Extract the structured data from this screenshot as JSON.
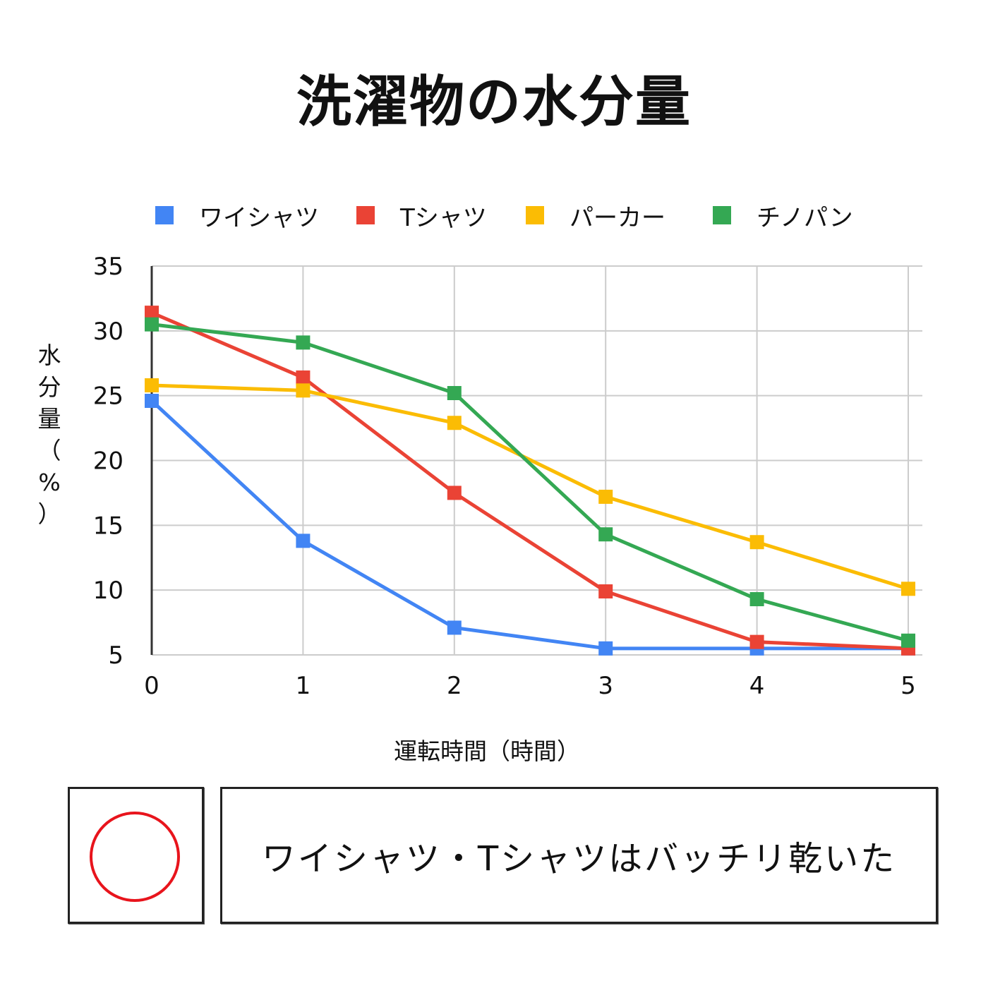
{
  "chart_data": {
    "type": "line",
    "title": "洗濯物の水分量",
    "xlabel": "運転時間（時間）",
    "ylabel": "水分量（%）",
    "x": [
      0,
      1,
      2,
      3,
      4,
      5
    ],
    "x_ticks": [
      "0",
      "1",
      "2",
      "3",
      "4",
      "5"
    ],
    "y_ticks": [
      "5",
      "10",
      "15",
      "20",
      "25",
      "30",
      "35"
    ],
    "ylim": [
      5,
      35
    ],
    "xlim": [
      0,
      5
    ],
    "grid": true,
    "legend_position": "top",
    "series": [
      {
        "name": "ワイシャツ",
        "color": "#4285f4",
        "values": [
          24.6,
          13.8,
          7.1,
          5.5,
          5.5,
          5.5
        ]
      },
      {
        "name": "Tシャツ",
        "color": "#ea4335",
        "values": [
          31.4,
          26.4,
          17.5,
          9.9,
          6.0,
          5.5
        ]
      },
      {
        "name": "パーカー",
        "color": "#fbbc04",
        "values": [
          25.8,
          25.4,
          22.9,
          17.2,
          13.7,
          10.1
        ]
      },
      {
        "name": "チノパン",
        "color": "#34a853",
        "values": [
          30.5,
          29.1,
          25.2,
          14.3,
          9.3,
          6.1
        ]
      }
    ]
  },
  "result": {
    "mark": "red-circle-mark",
    "text": "ワイシャツ・Tシャツはバッチリ乾いた"
  }
}
